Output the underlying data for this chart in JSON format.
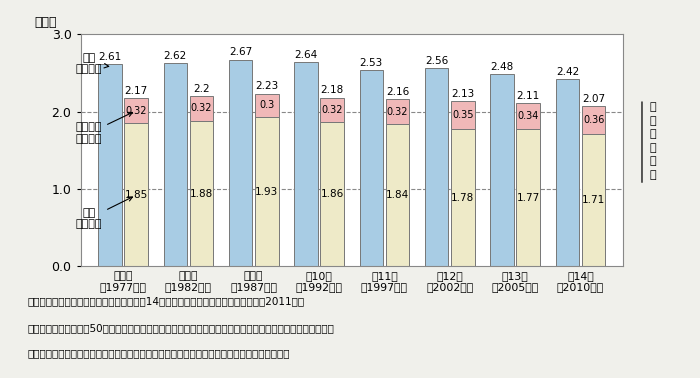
{
  "categories": [
    "第７回\n（1977年）",
    "第８回\n（1982年）",
    "第９回\n（1987年）",
    "第10回\n（1992年）",
    "第11回\n（1997年）",
    "第12回\n（2002年）",
    "第13回\n（2005年）",
    "第14回\n（2010年）"
  ],
  "ideal": [
    2.61,
    2.62,
    2.67,
    2.64,
    2.53,
    2.56,
    2.48,
    2.42
  ],
  "planned": [
    2.17,
    2.2,
    2.23,
    2.18,
    2.16,
    2.13,
    2.11,
    2.07
  ],
  "additional": [
    0.32,
    0.32,
    0.3,
    0.32,
    0.32,
    0.35,
    0.34,
    0.36
  ],
  "existing": [
    1.85,
    1.88,
    1.93,
    1.86,
    1.84,
    1.78,
    1.77,
    1.71
  ],
  "bar_color_ideal": "#a8cce4",
  "bar_color_existing": "#eeeac8",
  "bar_color_additional": "#f0b8b8",
  "ylim": [
    0.0,
    3.0
  ],
  "yticks": [
    0.0,
    1.0,
    2.0,
    3.0
  ],
  "ylabel": "（人）",
  "right_label": "予定子ども数",
  "legend_ideal": "理想\n子ども数",
  "legend_additional": "追加予定\n子ども数",
  "legend_existing": "現存\n子ども数",
  "source_text": "資料：国立社会保障・人口問題研究所「第14回出生動向基本調査（夫婦調査）」（2011年）",
  "note_text1": "　注：対象は妻の年齢50歳未満の初婚どうしの夫婦。予定子ども数は現存子ども数と追加予定子ども数の和",
  "note_text2": "　　として算出。総数には結婚持続期間不詳を含む。各調査の年は調査を実施した年である。",
  "background_color": "#f0f0eb",
  "plot_bg": "#ffffff",
  "grid_color": "#888888",
  "dashed_lines": [
    1.0,
    2.0
  ]
}
